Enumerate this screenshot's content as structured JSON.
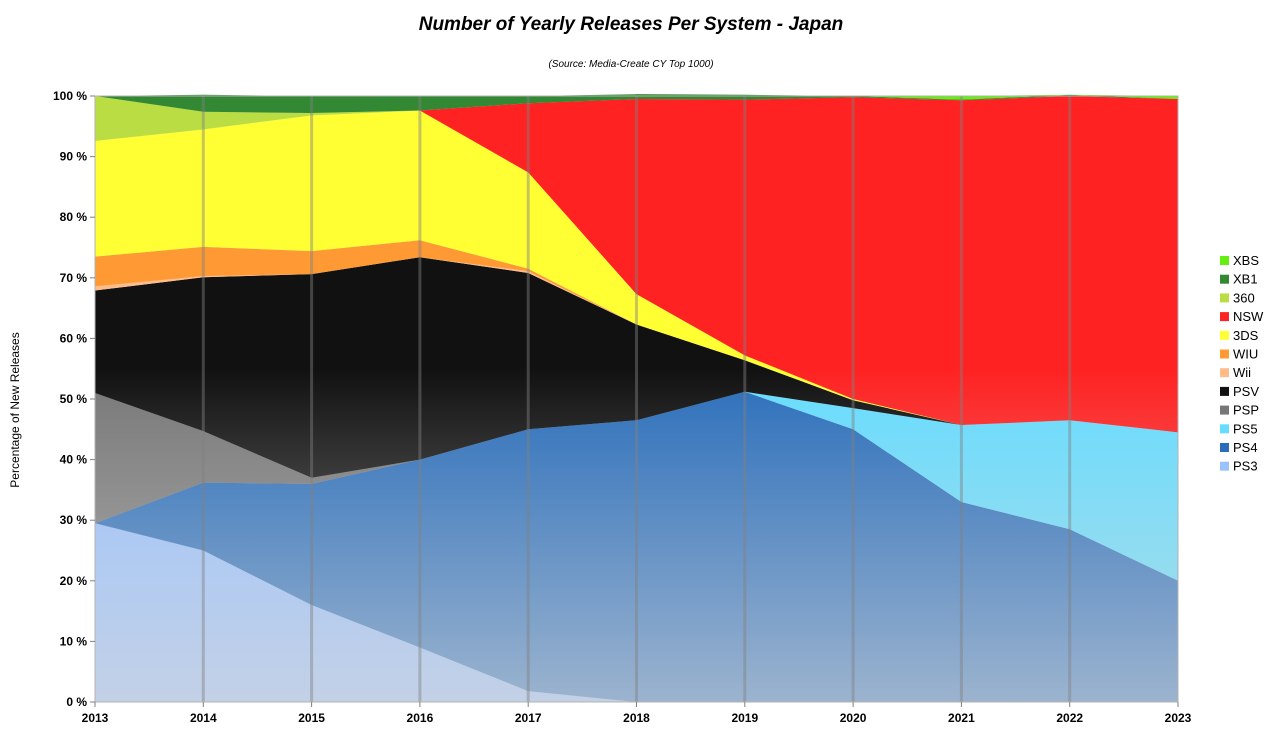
{
  "chart_data": {
    "type": "area",
    "stacked": true,
    "title": "Number of Yearly Releases Per System - Japan",
    "subtitle": "(Source: Media-Create CY Top 1000)",
    "xlabel": "",
    "ylabel": "Percentage of New Releases",
    "ylim": [
      0,
      100
    ],
    "y_ticks": [
      "0 %",
      "10 %",
      "20 %",
      "30 %",
      "40 %",
      "50 %",
      "60 %",
      "70 %",
      "80 %",
      "90 %",
      "100 %"
    ],
    "categories": [
      "2013",
      "2014",
      "2015",
      "2016",
      "2017",
      "2018",
      "2019",
      "2020",
      "2021",
      "2022",
      "2023"
    ],
    "legend_position": "right",
    "series": [
      {
        "name": "PS3",
        "color": "#99c2ff",
        "values": [
          29.5,
          25,
          16,
          9,
          1.8,
          0,
          0,
          0,
          0,
          0,
          0
        ]
      },
      {
        "name": "PS4",
        "color": "#2a6ebb",
        "values": [
          0,
          11.2,
          20,
          31,
          43.2,
          46.5,
          51.2,
          45,
          33,
          28.5,
          20
        ]
      },
      {
        "name": "PS5",
        "color": "#66ddff",
        "values": [
          0,
          0,
          0,
          0,
          0,
          0,
          0,
          3.5,
          12.7,
          18,
          24.5
        ]
      },
      {
        "name": "PSP",
        "color": "#777777",
        "values": [
          21.5,
          8.5,
          1,
          0,
          0,
          0,
          0,
          0,
          0,
          0,
          0
        ]
      },
      {
        "name": "PSV",
        "color": "#111111",
        "values": [
          16.9,
          25.4,
          33.6,
          33.4,
          25.8,
          15.8,
          5.2,
          1.3,
          0,
          0,
          0
        ]
      },
      {
        "name": "Wii",
        "color": "#ffbb88",
        "values": [
          0.7,
          0.2,
          0,
          0,
          0.3,
          0,
          0,
          0,
          0,
          0,
          0
        ]
      },
      {
        "name": "WIU",
        "color": "#ff9933",
        "values": [
          4.9,
          4.8,
          3.8,
          2.8,
          0.4,
          0,
          0,
          0,
          0,
          0,
          0
        ]
      },
      {
        "name": "3DS",
        "color": "#ffff33",
        "values": [
          19.1,
          19.4,
          22.4,
          21.4,
          15.9,
          5,
          0.8,
          0.2,
          0,
          0,
          0
        ]
      },
      {
        "name": "NSW",
        "color": "#ff2222",
        "values": [
          0,
          0,
          0,
          0,
          11.4,
          32.2,
          42.2,
          49.8,
          53.6,
          53.5,
          55
        ]
      },
      {
        "name": "360",
        "color": "#bbdd44",
        "values": [
          7.4,
          2.9,
          0.4,
          0,
          0,
          0,
          0,
          0,
          0,
          0,
          0
        ]
      },
      {
        "name": "XB1",
        "color": "#338833",
        "values": [
          0,
          2.8,
          2.8,
          2.4,
          1.2,
          0.8,
          0.8,
          0.2,
          0.1,
          0.2,
          0
        ]
      },
      {
        "name": "XBS",
        "color": "#66ee11",
        "values": [
          0,
          0,
          0,
          0,
          0,
          0,
          0,
          0,
          0.6,
          0,
          0.5
        ]
      }
    ]
  }
}
